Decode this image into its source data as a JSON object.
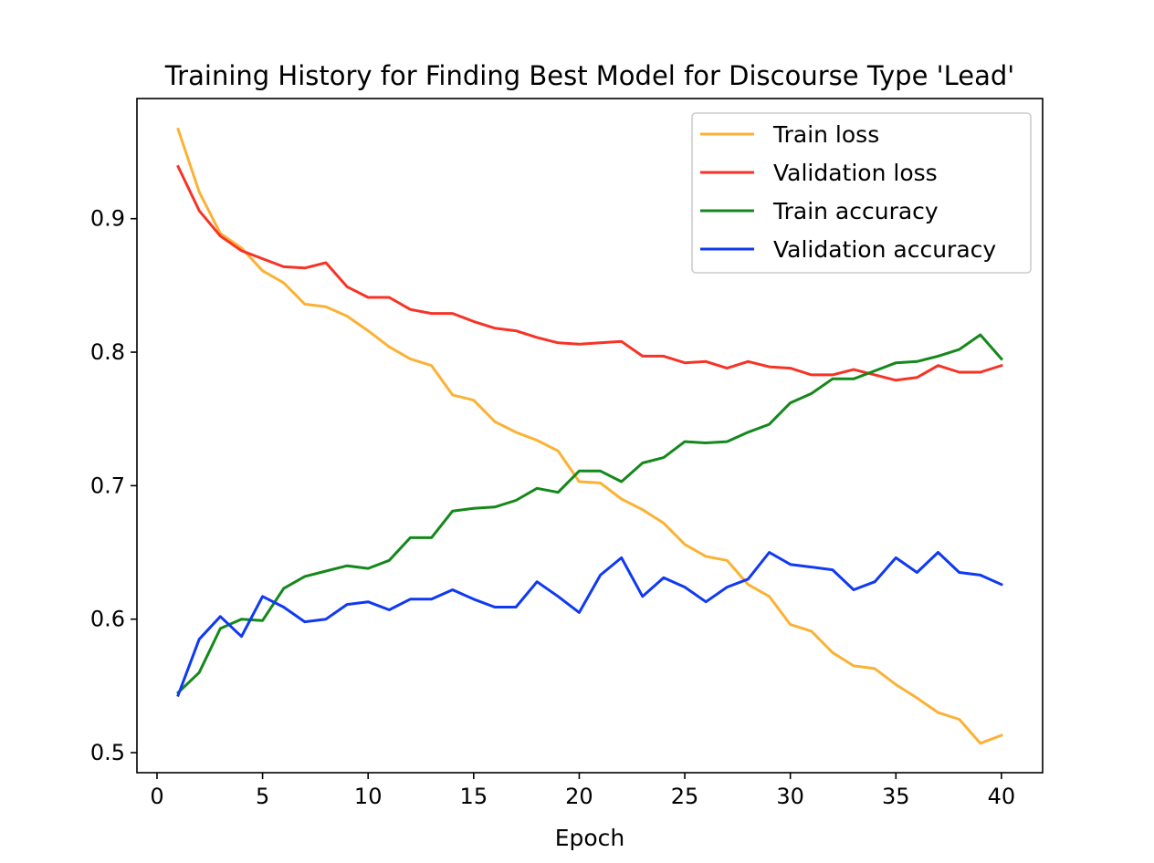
{
  "chart_data": {
    "type": "line",
    "title": "Training History for Finding Best Model for Discourse Type 'Lead'",
    "xlabel": "Epoch",
    "ylabel": "",
    "xlim": [
      -0.95,
      41.95
    ],
    "ylim": [
      0.485,
      0.99
    ],
    "xticks": [
      0,
      5,
      10,
      15,
      20,
      25,
      30,
      35,
      40
    ],
    "yticks": [
      0.5,
      0.6,
      0.7,
      0.8,
      0.9
    ],
    "xtick_labels": [
      "0",
      "5",
      "10",
      "15",
      "20",
      "25",
      "30",
      "35",
      "40"
    ],
    "ytick_labels": [
      "0.5",
      "0.6",
      "0.7",
      "0.8",
      "0.9"
    ],
    "grid": false,
    "legend_position": "top-right",
    "x": [
      1,
      2,
      3,
      4,
      5,
      6,
      7,
      8,
      9,
      10,
      11,
      12,
      13,
      14,
      15,
      16,
      17,
      18,
      19,
      20,
      21,
      22,
      23,
      24,
      25,
      26,
      27,
      28,
      29,
      30,
      31,
      32,
      33,
      34,
      35,
      36,
      37,
      38,
      39,
      40
    ],
    "series": [
      {
        "name": "Train loss",
        "color": "#fbb234",
        "values": [
          0.967,
          0.92,
          0.889,
          0.878,
          0.861,
          0.852,
          0.836,
          0.834,
          0.827,
          0.816,
          0.804,
          0.795,
          0.79,
          0.768,
          0.764,
          0.748,
          0.74,
          0.734,
          0.726,
          0.703,
          0.702,
          0.69,
          0.682,
          0.672,
          0.656,
          0.647,
          0.644,
          0.626,
          0.617,
          0.596,
          0.591,
          0.575,
          0.565,
          0.563,
          0.551,
          0.541,
          0.53,
          0.525,
          0.507,
          0.513
        ]
      },
      {
        "name": "Validation loss",
        "color": "#f73325",
        "values": [
          0.939,
          0.906,
          0.887,
          0.876,
          0.87,
          0.864,
          0.863,
          0.867,
          0.849,
          0.841,
          0.841,
          0.832,
          0.829,
          0.829,
          0.823,
          0.818,
          0.816,
          0.811,
          0.807,
          0.806,
          0.807,
          0.808,
          0.797,
          0.797,
          0.792,
          0.793,
          0.788,
          0.793,
          0.789,
          0.788,
          0.783,
          0.783,
          0.787,
          0.783,
          0.779,
          0.781,
          0.79,
          0.785,
          0.785,
          0.79
        ]
      },
      {
        "name": "Train accuracy",
        "color": "#14881b",
        "values": [
          0.545,
          0.56,
          0.593,
          0.6,
          0.599,
          0.623,
          0.632,
          0.636,
          0.64,
          0.638,
          0.644,
          0.661,
          0.661,
          0.681,
          0.683,
          0.684,
          0.689,
          0.698,
          0.695,
          0.711,
          0.711,
          0.703,
          0.717,
          0.721,
          0.733,
          0.732,
          0.733,
          0.74,
          0.746,
          0.762,
          0.769,
          0.78,
          0.78,
          0.786,
          0.792,
          0.793,
          0.797,
          0.802,
          0.813,
          0.795
        ]
      },
      {
        "name": "Validation accuracy",
        "color": "#0f39f3",
        "values": [
          0.543,
          0.585,
          0.602,
          0.587,
          0.617,
          0.609,
          0.598,
          0.6,
          0.611,
          0.613,
          0.607,
          0.615,
          0.615,
          0.622,
          0.615,
          0.609,
          0.609,
          0.628,
          0.617,
          0.605,
          0.633,
          0.646,
          0.617,
          0.631,
          0.624,
          0.613,
          0.624,
          0.63,
          0.65,
          0.641,
          0.639,
          0.637,
          0.622,
          0.628,
          0.646,
          0.635,
          0.65,
          0.635,
          0.633,
          0.626
        ]
      }
    ]
  }
}
